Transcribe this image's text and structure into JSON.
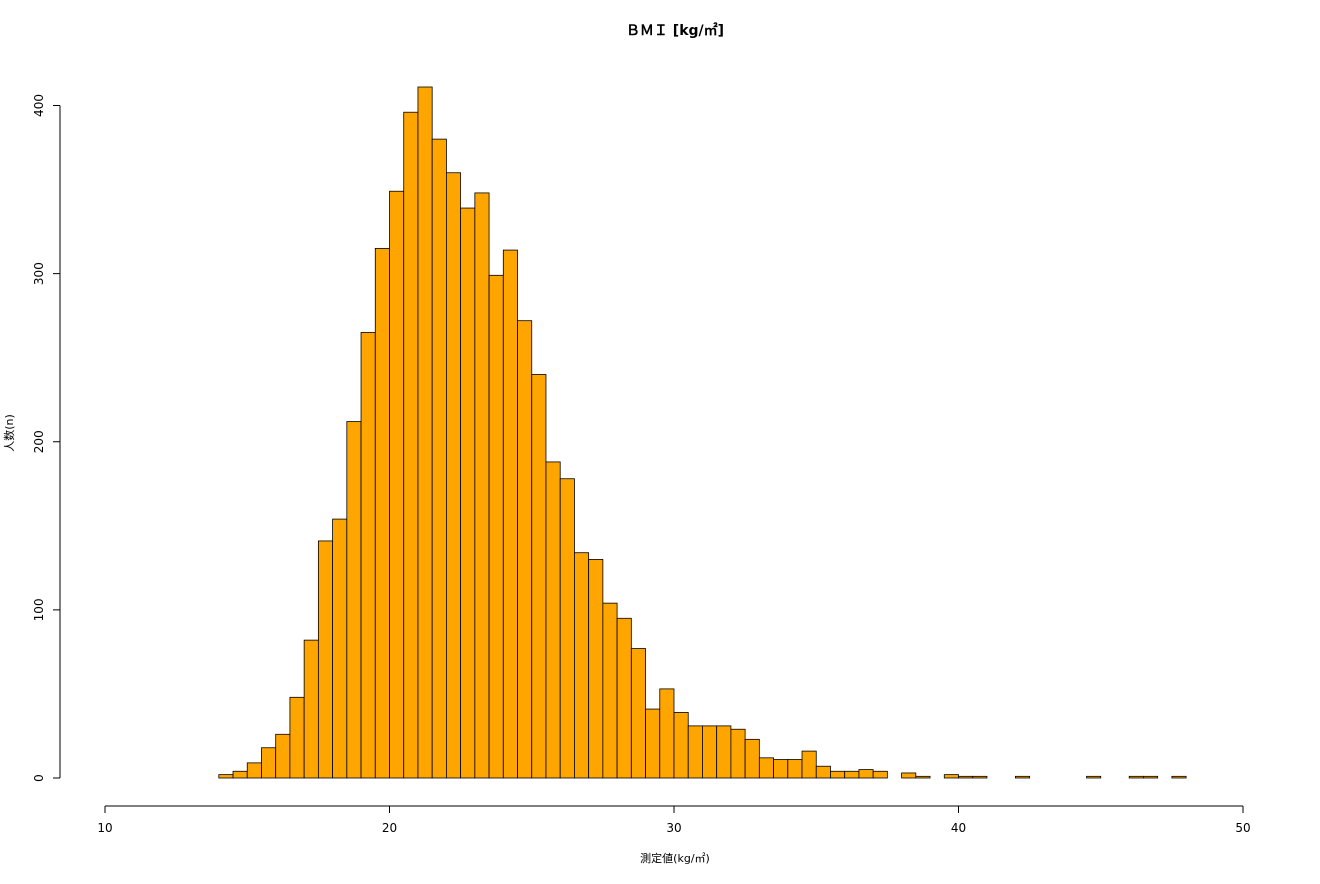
{
  "chart_data": {
    "type": "histogram",
    "title": "ＢＭＩ [kg/㎡]",
    "x_label": "測定値(kg/㎡)",
    "y_label": "人数(n)",
    "bins": [
      14,
      14.5,
      15,
      15.5,
      16,
      16.5,
      17,
      17.5,
      18,
      18.5,
      19,
      19.5,
      20,
      20.5,
      21,
      21.5,
      22,
      22.5,
      23,
      23.5,
      24,
      24.5,
      25,
      25.5,
      26,
      26.5,
      27,
      27.5,
      28,
      28.5,
      29,
      29.5,
      30,
      30.5,
      31,
      31.5,
      32,
      32.5,
      33,
      33.5,
      34,
      34.5,
      35,
      35.5,
      36,
      36.5,
      37,
      37.5,
      38,
      38.5,
      39,
      39.5,
      40,
      40.5,
      41,
      41.5,
      42,
      42.5,
      43,
      43.5,
      44,
      44.5,
      45,
      45.5,
      46,
      46.5,
      47,
      47.5,
      48
    ],
    "values": [
      2,
      4,
      9,
      18,
      26,
      48,
      82,
      141,
      154,
      212,
      265,
      315,
      349,
      396,
      411,
      380,
      360,
      339,
      348,
      299,
      314,
      272,
      240,
      188,
      178,
      134,
      130,
      104,
      95,
      77,
      41,
      53,
      39,
      31,
      31,
      31,
      29,
      23,
      12,
      11,
      11,
      16,
      7,
      4,
      4,
      5,
      4,
      0,
      3,
      1,
      0,
      2,
      1,
      1,
      0,
      0,
      1,
      0,
      0,
      0,
      0,
      1,
      0,
      0,
      1,
      1,
      0,
      1
    ],
    "color": "#ffa500",
    "xlim": [
      10,
      50
    ],
    "xticks": [
      10,
      20,
      30,
      40,
      50
    ],
    "ylim": [
      0,
      411
    ],
    "yticks": [
      0,
      100,
      200,
      300,
      400
    ]
  }
}
